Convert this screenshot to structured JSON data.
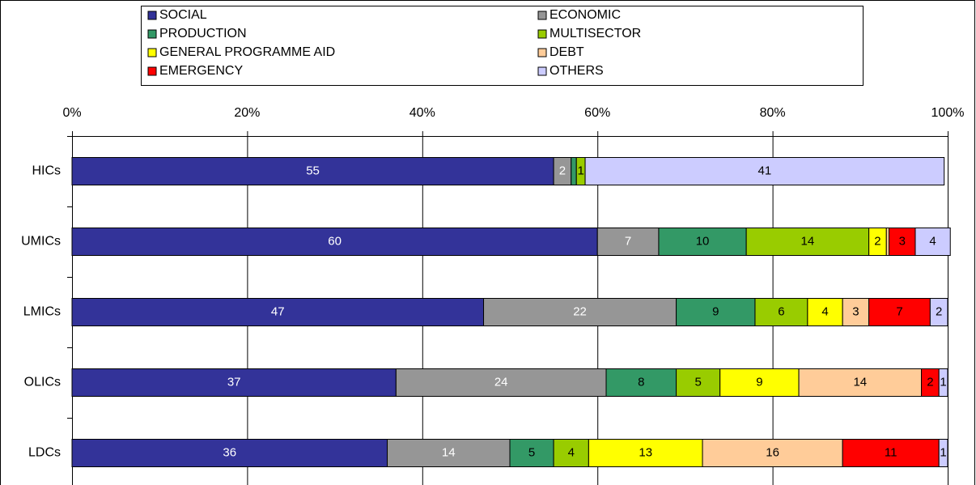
{
  "chart_data": {
    "type": "bar",
    "orientation": "horizontal",
    "stacked": true,
    "categories": [
      "HICs",
      "UMICs",
      "LMICs",
      "OLICs",
      "LDCs"
    ],
    "series": [
      {
        "name": "SOCIAL",
        "color": "#333399",
        "label_color": "#ffffff",
        "values": [
          55,
          60,
          47,
          37,
          36
        ]
      },
      {
        "name": "ECONOMIC",
        "color": "#969696",
        "label_color": "#ffffff",
        "values": [
          2,
          7,
          22,
          24,
          14
        ]
      },
      {
        "name": "PRODUCTION",
        "color": "#339966",
        "label_color": "#000000",
        "values": [
          0.6,
          10,
          9,
          8,
          5
        ]
      },
      {
        "name": "MULTISECTOR",
        "color": "#99cc00",
        "label_color": "#000000",
        "values": [
          1,
          14,
          6,
          5,
          4
        ]
      },
      {
        "name": "GENERAL PROGRAMME AID",
        "color": "#ffff00",
        "label_color": "#000000",
        "values": [
          0,
          2,
          4,
          9,
          13
        ]
      },
      {
        "name": "DEBT",
        "color": "#ffcc99",
        "label_color": "#000000",
        "values": [
          0,
          0.3,
          3,
          14,
          16
        ]
      },
      {
        "name": "EMERGENCY",
        "color": "#ff0000",
        "label_color": "#000000",
        "values": [
          0,
          3,
          7,
          2,
          11
        ]
      },
      {
        "name": "OTHERS",
        "color": "#ccccff",
        "label_color": "#000000",
        "values": [
          41,
          4,
          2,
          1,
          1
        ]
      }
    ],
    "xlim": [
      0,
      100
    ],
    "xticks": [
      {
        "value": 0,
        "label": "0%"
      },
      {
        "value": 20,
        "label": "20%"
      },
      {
        "value": 40,
        "label": "40%"
      },
      {
        "value": 60,
        "label": "60%"
      },
      {
        "value": 80,
        "label": "80%"
      },
      {
        "value": 100,
        "label": "100%"
      }
    ],
    "grid": true,
    "legend": "top"
  }
}
